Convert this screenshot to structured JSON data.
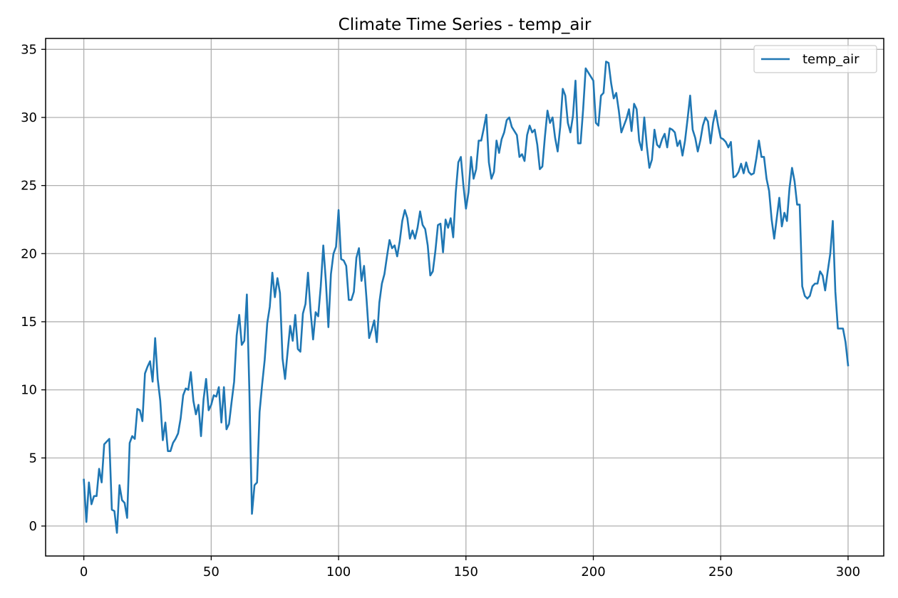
{
  "chart_data": {
    "type": "line",
    "title": "Climate Time Series - temp_air",
    "xlabel": "",
    "ylabel": "",
    "xlim": [
      -15,
      314
    ],
    "ylim": [
      -2.2,
      35.8
    ],
    "xticks": [
      0,
      50,
      100,
      150,
      200,
      250,
      300
    ],
    "yticks": [
      0,
      5,
      10,
      15,
      20,
      25,
      30,
      35
    ],
    "grid": true,
    "legend_position": "top-right",
    "series": [
      {
        "name": "temp_air",
        "color": "#1f77b4",
        "x_start": 0,
        "x_step": 1,
        "values": [
          3.4,
          0.3,
          3.2,
          1.6,
          2.2,
          2.2,
          4.2,
          3.2,
          6.0,
          6.2,
          6.4,
          1.2,
          1.1,
          -0.5,
          3.0,
          1.9,
          1.7,
          0.6,
          6.1,
          6.6,
          6.4,
          8.6,
          8.5,
          7.7,
          11.2,
          11.7,
          12.1,
          10.6,
          13.8,
          10.8,
          9.2,
          6.3,
          7.6,
          5.5,
          5.5,
          6.1,
          6.4,
          6.8,
          7.9,
          9.6,
          10.1,
          10.0,
          11.3,
          9.2,
          8.2,
          8.9,
          6.6,
          9.3,
          10.8,
          8.5,
          8.9,
          9.6,
          9.5,
          10.2,
          7.6,
          10.2,
          7.1,
          7.5,
          9.1,
          10.6,
          14.0,
          15.5,
          13.3,
          13.6,
          17.0,
          9.8,
          0.9,
          3.0,
          3.2,
          8.4,
          10.4,
          12.2,
          14.9,
          16.1,
          18.6,
          16.8,
          18.2,
          17.1,
          12.3,
          10.8,
          12.8,
          14.7,
          13.6,
          15.5,
          13.0,
          12.8,
          15.6,
          16.3,
          18.6,
          15.8,
          13.7,
          15.7,
          15.4,
          17.6,
          20.6,
          18.0,
          14.6,
          18.5,
          20.0,
          20.5,
          23.2,
          19.6,
          19.5,
          19.1,
          16.6,
          16.6,
          17.2,
          19.7,
          20.4,
          18.0,
          19.1,
          16.6,
          13.8,
          14.4,
          15.1,
          13.5,
          16.4,
          17.8,
          18.5,
          19.8,
          21.0,
          20.4,
          20.6,
          19.8,
          20.9,
          22.4,
          23.2,
          22.6,
          21.1,
          21.7,
          21.1,
          21.9,
          23.1,
          22.1,
          21.8,
          20.6,
          18.4,
          18.7,
          20.2,
          22.1,
          22.2,
          20.1,
          22.5,
          21.9,
          22.6,
          21.2,
          24.5,
          26.7,
          27.1,
          25.0,
          23.3,
          24.5,
          27.1,
          25.5,
          26.2,
          28.3,
          28.3,
          29.2,
          30.2,
          26.7,
          25.5,
          26.0,
          28.3,
          27.4,
          28.4,
          28.9,
          29.8,
          30.0,
          29.3,
          29.0,
          28.7,
          27.1,
          27.3,
          26.8,
          28.7,
          29.4,
          28.9,
          29.1,
          28.0,
          26.2,
          26.4,
          28.6,
          30.5,
          29.6,
          30.0,
          28.5,
          27.5,
          29.3,
          32.1,
          31.6,
          29.6,
          28.9,
          30.1,
          32.7,
          28.1,
          28.1,
          30.6,
          33.6,
          33.3,
          33.0,
          32.7,
          29.6,
          29.4,
          31.6,
          31.8,
          34.1,
          34.0,
          32.5,
          31.4,
          31.8,
          30.5,
          28.9,
          29.4,
          29.9,
          30.6,
          29.0,
          31.0,
          30.6,
          28.3,
          27.6,
          30.0,
          27.9,
          26.3,
          26.9,
          29.1,
          28.0,
          27.8,
          28.4,
          28.8,
          27.8,
          29.2,
          29.1,
          28.9,
          27.9,
          28.3,
          27.2,
          28.3,
          29.9,
          31.6,
          29.1,
          28.5,
          27.5,
          28.3,
          29.4,
          30.0,
          29.7,
          28.1,
          29.6,
          30.5,
          29.4,
          28.5,
          28.4,
          28.2,
          27.8,
          28.2,
          25.6,
          25.7,
          26.0,
          26.6,
          25.9,
          26.7,
          26.0,
          25.8,
          25.9,
          27.0,
          28.3,
          27.1,
          27.1,
          25.5,
          24.6,
          22.5,
          21.1,
          22.6,
          24.1,
          22.0,
          23.0,
          22.4,
          24.8,
          26.3,
          25.3,
          23.6,
          23.6,
          17.6,
          16.9,
          16.7,
          16.9,
          17.6,
          17.8,
          17.8,
          18.7,
          18.4,
          17.3,
          18.7,
          20.0,
          22.4,
          17.2,
          14.5,
          14.5,
          14.5,
          13.5,
          11.8
        ]
      }
    ]
  }
}
